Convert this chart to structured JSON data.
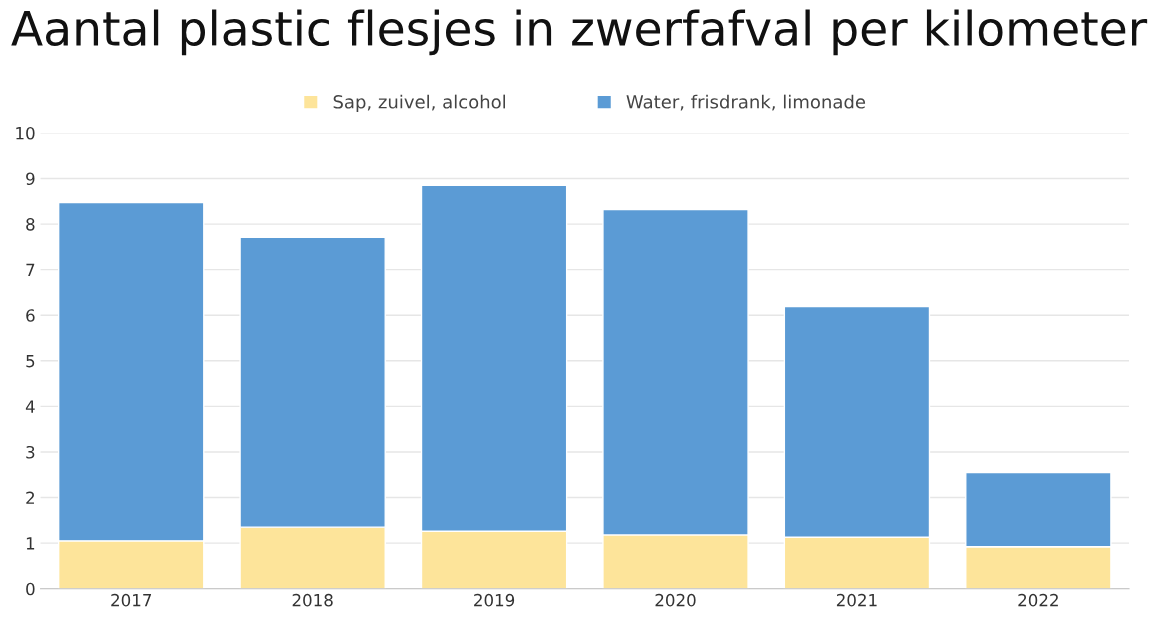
{
  "chart_data": {
    "type": "bar",
    "title": "Aantal plastic flesjes in zwerfafval per kilometer",
    "categories": [
      "2017",
      "2018",
      "2019",
      "2020",
      "2021",
      "2022"
    ],
    "stacked": true,
    "series": [
      {
        "name": "Sap, zuivel, alcohol",
        "color": "#fde49a",
        "values": [
          1.05,
          1.35,
          1.26,
          1.18,
          1.13,
          0.92
        ]
      },
      {
        "name": "Water, frisdrank, limonade",
        "color": "#5b9bd5",
        "values": [
          7.42,
          6.36,
          7.59,
          7.14,
          5.06,
          1.63
        ]
      }
    ],
    "ylim": [
      0,
      10
    ],
    "yticks": [
      0,
      1,
      2,
      3,
      4,
      5,
      6,
      7,
      8,
      9,
      10
    ],
    "grid": "y",
    "legend": "top"
  }
}
